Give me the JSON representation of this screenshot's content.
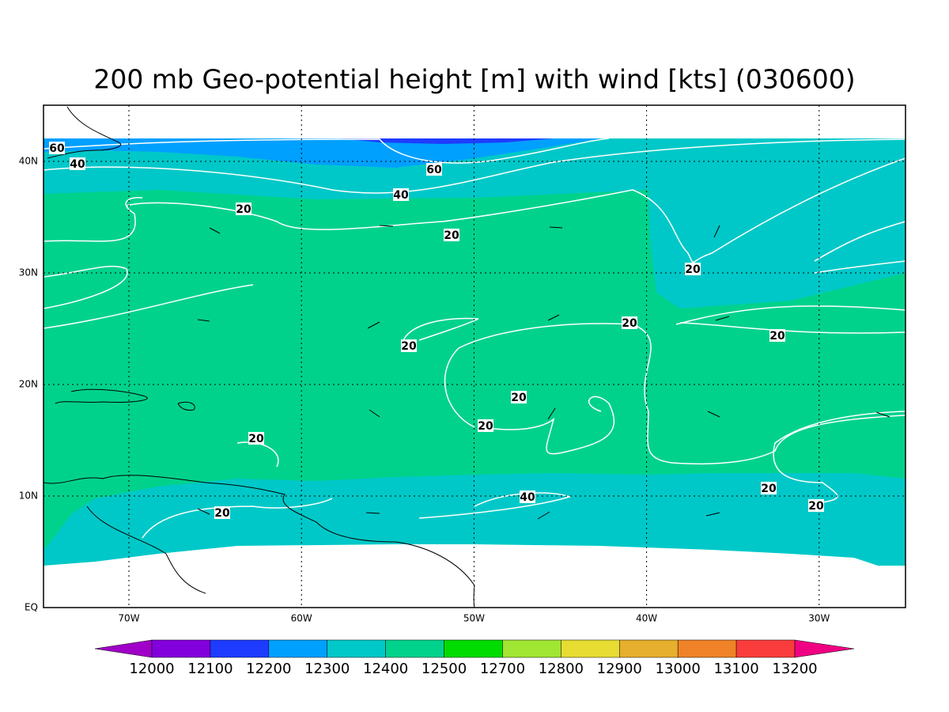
{
  "title": "200 mb Geo-potential height [m] with wind [kts] (030600)",
  "lon_labels": [
    "70W",
    "60W",
    "50W",
    "40W",
    "30W"
  ],
  "lat_labels": [
    "EQ",
    "10N",
    "20N",
    "30N",
    "40N"
  ],
  "contour_labels": [
    60,
    40,
    60,
    40,
    20,
    20,
    20,
    20,
    20,
    20,
    20,
    20,
    20,
    20,
    40,
    20,
    20
  ],
  "colorbar": {
    "levels": [
      12000,
      12100,
      12200,
      12300,
      12400,
      12500,
      12700,
      12800,
      12900,
      13000,
      13100,
      13200
    ],
    "colors": [
      "#a000c8",
      "#8200dc",
      "#1e3cff",
      "#00a0ff",
      "#00c8c8",
      "#00d28c",
      "#00dc00",
      "#a0e632",
      "#e6dc32",
      "#e6af2d",
      "#f08228",
      "#fa3c3c",
      "#f00082"
    ]
  }
}
